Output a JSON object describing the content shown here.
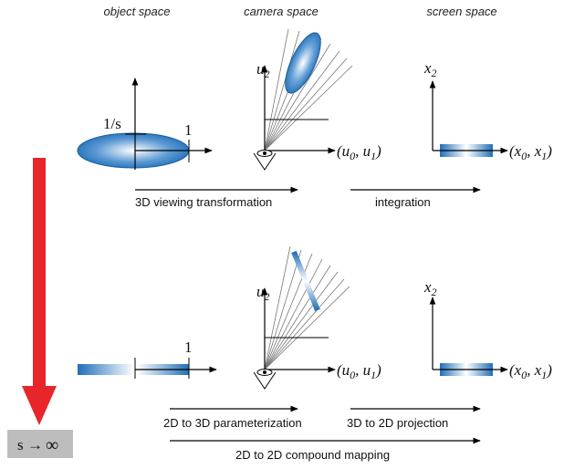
{
  "headers": {
    "object_space": "object space",
    "camera_space": "camera space",
    "screen_space": "screen space"
  },
  "top_row": {
    "scale_label": "1/s",
    "unit_label": "1",
    "camera_axis_vertical": "u",
    "camera_axis_vertical_sub": "2",
    "camera_axis_horizontal": "(u",
    "camera_axis_horizontal_sub0": "0",
    "camera_axis_horizontal_mid": ", u",
    "camera_axis_horizontal_sub1": "1",
    "camera_axis_horizontal_end": ")",
    "screen_axis_vertical": "x",
    "screen_axis_vertical_sub": "2",
    "screen_axis_horizontal": "(x",
    "screen_axis_horizontal_sub0": "0",
    "screen_axis_horizontal_mid": ", x",
    "screen_axis_horizontal_sub1": "1",
    "screen_axis_horizontal_end": ")",
    "step1_caption": "3D viewing transformation",
    "step2_caption": "integration"
  },
  "bottom_row": {
    "unit_label": "1",
    "camera_axis_vertical": "u",
    "camera_axis_vertical_sub": "2",
    "camera_axis_horizontal": "(u",
    "camera_axis_horizontal_sub0": "0",
    "camera_axis_horizontal_mid": ", u",
    "camera_axis_horizontal_sub1": "1",
    "camera_axis_horizontal_end": ")",
    "screen_axis_vertical": "x",
    "screen_axis_vertical_sub": "2",
    "screen_axis_horizontal": "(x",
    "screen_axis_horizontal_sub0": "0",
    "screen_axis_horizontal_mid": ", x",
    "screen_axis_horizontal_sub1": "1",
    "screen_axis_horizontal_end": ")",
    "step1_caption": "2D to 3D parameterization",
    "step2_caption": "3D to 2D projection",
    "compound_caption": "2D to 2D compound mapping"
  },
  "limit": {
    "label": "s",
    "arrow": "→",
    "infinity": "∞"
  },
  "colors": {
    "limit_arrow": "#e8262a",
    "limit_box": "#bdbdbd",
    "gaussian_dark": "#1f6fb8",
    "gaussian_light": "#ffffff"
  }
}
